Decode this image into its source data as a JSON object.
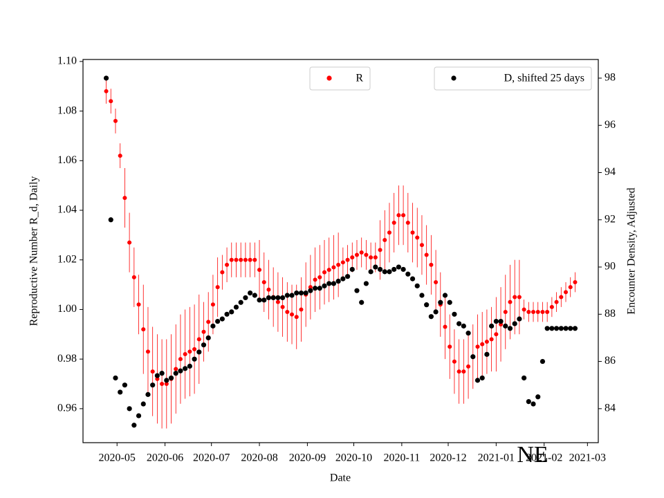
{
  "chart_data": {
    "type": "scatter",
    "xlabel": "Date",
    "ylabel": "Reproductive Number R_d, Daily",
    "y2label": "Encounter Density, Adjusted",
    "annotation": "NE",
    "xlim": [
      "2020-04-09",
      "2021-03-08"
    ],
    "xticks": [
      {
        "value": "2020-05-01",
        "label": "2020-05"
      },
      {
        "value": "2020-06-01",
        "label": "2020-06"
      },
      {
        "value": "2020-07-01",
        "label": "2020-07"
      },
      {
        "value": "2020-08-01",
        "label": "2020-08"
      },
      {
        "value": "2020-09-01",
        "label": "2020-09"
      },
      {
        "value": "2020-10-01",
        "label": "2020-10"
      },
      {
        "value": "2020-11-01",
        "label": "2020-11"
      },
      {
        "value": "2020-12-01",
        "label": "2020-12"
      },
      {
        "value": "2021-01-01",
        "label": "2021-01"
      },
      {
        "value": "2021-02-01",
        "label": "2021-02"
      },
      {
        "value": "2021-03-01",
        "label": "2021-03"
      }
    ],
    "ylim": [
      0.9463,
      1.1008
    ],
    "yticks": [
      0.96,
      0.98,
      {
        "value": 1.0,
        "label": "1.00"
      },
      1.02,
      1.04,
      1.06,
      1.08,
      {
        "value": 1.1,
        "label": "1.10"
      }
    ],
    "y2lim": [
      82.56,
      98.79
    ],
    "y2ticks": [
      84,
      86,
      88,
      90,
      92,
      94,
      96,
      98
    ],
    "ylabel_color": "#ff0000",
    "x": [
      "2020-04-24",
      "2020-04-27",
      "2020-04-30",
      "2020-05-03",
      "2020-05-06",
      "2020-05-09",
      "2020-05-12",
      "2020-05-15",
      "2020-05-18",
      "2020-05-21",
      "2020-05-24",
      "2020-05-27",
      "2020-05-30",
      "2020-06-02",
      "2020-06-05",
      "2020-06-08",
      "2020-06-11",
      "2020-06-14",
      "2020-06-17",
      "2020-06-20",
      "2020-06-23",
      "2020-06-26",
      "2020-06-29",
      "2020-07-02",
      "2020-07-05",
      "2020-07-08",
      "2020-07-11",
      "2020-07-14",
      "2020-07-17",
      "2020-07-20",
      "2020-07-23",
      "2020-07-26",
      "2020-07-29",
      "2020-08-01",
      "2020-08-04",
      "2020-08-07",
      "2020-08-10",
      "2020-08-13",
      "2020-08-16",
      "2020-08-19",
      "2020-08-22",
      "2020-08-25",
      "2020-08-28",
      "2020-08-31",
      "2020-09-03",
      "2020-09-06",
      "2020-09-09",
      "2020-09-12",
      "2020-09-15",
      "2020-09-18",
      "2020-09-21",
      "2020-09-24",
      "2020-09-27",
      "2020-09-30",
      "2020-10-03",
      "2020-10-06",
      "2020-10-09",
      "2020-10-12",
      "2020-10-15",
      "2020-10-18",
      "2020-10-21",
      "2020-10-24",
      "2020-10-27",
      "2020-10-30",
      "2020-11-02",
      "2020-11-05",
      "2020-11-08",
      "2020-11-11",
      "2020-11-14",
      "2020-11-17",
      "2020-11-20",
      "2020-11-23",
      "2020-11-26",
      "2020-11-29",
      "2020-12-02",
      "2020-12-05",
      "2020-12-08",
      "2020-12-11",
      "2020-12-14",
      "2020-12-17",
      "2020-12-20",
      "2020-12-23",
      "2020-12-26",
      "2020-12-29",
      "2021-01-01",
      "2021-01-04",
      "2021-01-07",
      "2021-01-10",
      "2021-01-13",
      "2021-01-16",
      "2021-01-19",
      "2021-01-22",
      "2021-01-25",
      "2021-01-28",
      "2021-01-31",
      "2021-02-03",
      "2021-02-06",
      "2021-02-09",
      "2021-02-12",
      "2021-02-15",
      "2021-02-18",
      "2021-02-21"
    ],
    "series": [
      {
        "name": "R",
        "color": "#ff0000",
        "axis": "y",
        "legend": "upper center",
        "values": [
          1.088,
          1.084,
          1.076,
          1.062,
          1.045,
          1.027,
          1.013,
          1.002,
          0.992,
          0.983,
          0.975,
          0.972,
          0.97,
          0.97,
          0.972,
          0.976,
          0.98,
          0.982,
          0.983,
          0.984,
          0.988,
          0.991,
          0.995,
          1.002,
          1.009,
          1.015,
          1.018,
          1.02,
          1.02,
          1.02,
          1.02,
          1.02,
          1.02,
          1.016,
          1.011,
          1.008,
          1.005,
          1.003,
          1.001,
          0.999,
          0.998,
          0.997,
          1.0,
          1.006,
          1.009,
          1.012,
          1.013,
          1.015,
          1.016,
          1.017,
          1.018,
          1.019,
          1.02,
          1.021,
          1.022,
          1.023,
          1.022,
          1.021,
          1.021,
          1.024,
          1.028,
          1.031,
          1.035,
          1.038,
          1.038,
          1.035,
          1.031,
          1.029,
          1.026,
          1.022,
          1.018,
          1.011,
          1.002,
          0.993,
          0.985,
          0.979,
          0.975,
          0.975,
          0.977,
          0.981,
          0.985,
          0.986,
          0.987,
          0.988,
          0.99,
          0.994,
          0.999,
          1.003,
          1.005,
          1.005,
          1.0,
          0.999,
          0.999,
          0.999,
          0.999,
          0.999,
          1.001,
          1.003,
          1.005,
          1.007,
          1.009,
          1.011
        ],
        "errors": [
          0.005,
          0.005,
          0.005,
          0.005,
          0.012,
          0.012,
          0.012,
          0.012,
          0.018,
          0.018,
          0.018,
          0.018,
          0.018,
          0.018,
          0.018,
          0.018,
          0.018,
          0.018,
          0.018,
          0.018,
          0.018,
          0.012,
          0.012,
          0.012,
          0.012,
          0.007,
          0.007,
          0.007,
          0.007,
          0.007,
          0.007,
          0.007,
          0.007,
          0.012,
          0.012,
          0.012,
          0.012,
          0.012,
          0.012,
          0.012,
          0.012,
          0.013,
          0.013,
          0.013,
          0.013,
          0.013,
          0.013,
          0.013,
          0.013,
          0.013,
          0.013,
          0.006,
          0.006,
          0.006,
          0.006,
          0.006,
          0.006,
          0.006,
          0.006,
          0.012,
          0.012,
          0.012,
          0.012,
          0.012,
          0.012,
          0.012,
          0.012,
          0.012,
          0.012,
          0.012,
          0.012,
          0.013,
          0.013,
          0.013,
          0.013,
          0.013,
          0.013,
          0.013,
          0.013,
          0.013,
          0.013,
          0.013,
          0.013,
          0.013,
          0.015,
          0.015,
          0.015,
          0.015,
          0.015,
          0.015,
          0.004,
          0.004,
          0.004,
          0.004,
          0.004,
          0.004,
          0.004,
          0.004,
          0.004,
          0.004,
          0.004,
          0.004
        ]
      },
      {
        "name": "D, shifted 25 days",
        "color": "#000000",
        "axis": "y2",
        "legend": "upper right",
        "values": [
          98,
          92,
          85.3,
          84.7,
          85,
          84,
          83.3,
          83.7,
          84.2,
          84.6,
          85,
          85.4,
          85.5,
          85.2,
          85.3,
          85.5,
          85.6,
          85.7,
          85.8,
          86.1,
          86.4,
          86.7,
          87,
          87.5,
          87.7,
          87.8,
          88,
          88.1,
          88.3,
          88.5,
          88.7,
          88.9,
          88.8,
          88.6,
          88.6,
          88.7,
          88.7,
          88.7,
          88.7,
          88.8,
          88.8,
          88.9,
          88.9,
          88.9,
          89,
          89.1,
          89.1,
          89.2,
          89.3,
          89.3,
          89.4,
          89.5,
          89.6,
          89.9,
          89,
          88.5,
          89.3,
          89.8,
          90,
          89.9,
          89.8,
          89.8,
          89.9,
          90,
          89.9,
          89.7,
          89.5,
          89.2,
          88.8,
          88.4,
          87.9,
          88.1,
          88.5,
          88.8,
          88.5,
          88,
          87.6,
          87.5,
          87.2,
          86.2,
          85.2,
          85.3,
          86.3,
          87.5,
          87.7,
          87.7,
          87.5,
          87.4,
          87.6,
          87.8,
          85.3,
          84.3,
          84.2,
          84.5,
          86,
          87.4,
          87.4,
          87.4,
          87.4,
          87.4,
          87.4,
          87.4
        ]
      }
    ]
  }
}
